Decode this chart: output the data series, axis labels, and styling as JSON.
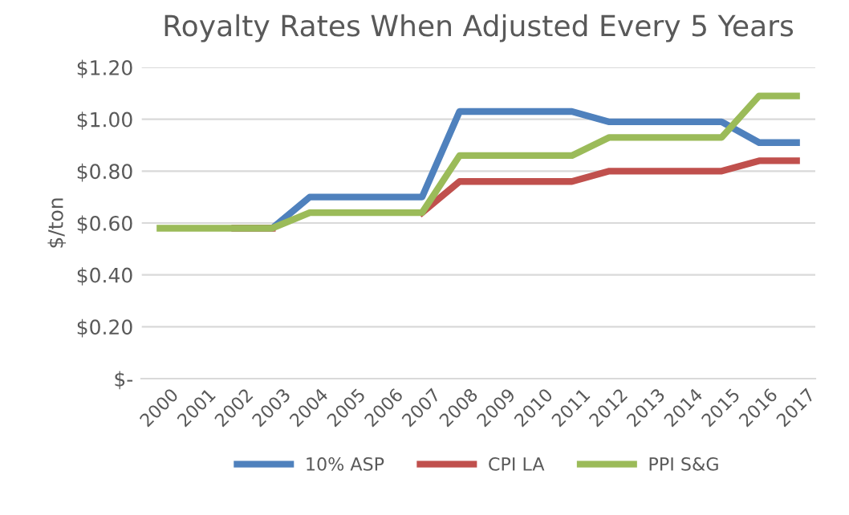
{
  "chart_data": {
    "type": "line",
    "title": "Royalty Rates When Adjusted Every 5 Years",
    "ylabel": "$/ton",
    "categories": [
      "2000",
      "2001",
      "2002",
      "2003",
      "2004",
      "2005",
      "2006",
      "2007",
      "2008",
      "2009",
      "2010",
      "2011",
      "2012",
      "2013",
      "2014",
      "2015",
      "2016",
      "2017"
    ],
    "series": [
      {
        "name": "10% ASP",
        "color": "#4f81bd",
        "values": [
          null,
          null,
          0.58,
          0.58,
          0.7,
          0.7,
          0.7,
          0.7,
          1.03,
          1.03,
          1.03,
          1.03,
          0.99,
          0.99,
          0.99,
          0.99,
          0.91,
          0.91
        ]
      },
      {
        "name": "CPI LA",
        "color": "#c0504d",
        "values": [
          null,
          null,
          0.58,
          0.58,
          null,
          null,
          null,
          0.64,
          0.76,
          0.76,
          0.76,
          0.76,
          0.8,
          0.8,
          0.8,
          0.8,
          0.84,
          0.84
        ]
      },
      {
        "name": "PPI S&G",
        "color": "#9bbb59",
        "values": [
          0.58,
          0.58,
          0.58,
          0.58,
          0.64,
          0.64,
          0.64,
          0.64,
          0.86,
          0.86,
          0.86,
          0.86,
          0.93,
          0.93,
          0.93,
          0.93,
          1.09,
          1.09
        ]
      }
    ],
    "ylim": [
      0,
      1.2
    ],
    "yticks": [
      {
        "value": 0,
        "label": "$-"
      },
      {
        "value": 0.2,
        "label": "$0.20"
      },
      {
        "value": 0.4,
        "label": "$0.40"
      },
      {
        "value": 0.6,
        "label": "$0.60"
      },
      {
        "value": 0.8,
        "label": "$0.80"
      },
      {
        "value": 1.0,
        "label": "$1.00"
      },
      {
        "value": 1.2,
        "label": "$1.20"
      }
    ],
    "grid": "y",
    "legend": "bottom",
    "marker": "none",
    "line_style": "solid"
  }
}
